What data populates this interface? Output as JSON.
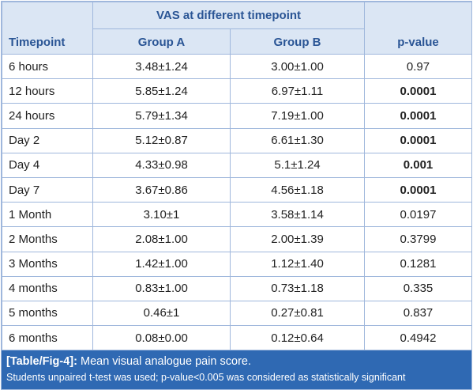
{
  "table": {
    "group_header": "VAS at different timepoint",
    "columns": [
      "Timepoint",
      "Group A",
      "Group B",
      "p-value"
    ],
    "rows": [
      {
        "timepoint": "6 hours",
        "group_a": "3.48±1.24",
        "group_b": "3.00±1.00",
        "p_value": "0.97",
        "bold": false
      },
      {
        "timepoint": "12 hours",
        "group_a": "5.85±1.24",
        "group_b": "6.97±1.11",
        "p_value": "0.0001",
        "bold": true
      },
      {
        "timepoint": "24 hours",
        "group_a": "5.79±1.34",
        "group_b": "7.19±1.00",
        "p_value": "0.0001",
        "bold": true
      },
      {
        "timepoint": "Day 2",
        "group_a": "5.12±0.87",
        "group_b": "6.61±1.30",
        "p_value": "0.0001",
        "bold": true
      },
      {
        "timepoint": "Day 4",
        "group_a": "4.33±0.98",
        "group_b": "5.1±1.24",
        "p_value": "0.001",
        "bold": true
      },
      {
        "timepoint": "Day 7",
        "group_a": "3.67±0.86",
        "group_b": "4.56±1.18",
        "p_value": "0.0001",
        "bold": true
      },
      {
        "timepoint": "1 Month",
        "group_a": "3.10±1",
        "group_b": "3.58±1.14",
        "p_value": "0.0197",
        "bold": false
      },
      {
        "timepoint": "2 Months",
        "group_a": "2.08±1.00",
        "group_b": "2.00±1.39",
        "p_value": "0.3799",
        "bold": false
      },
      {
        "timepoint": "3 Months",
        "group_a": "1.42±1.00",
        "group_b": "1.12±1.40",
        "p_value": "0.1281",
        "bold": false
      },
      {
        "timepoint": "4 months",
        "group_a": "0.83±1.00",
        "group_b": "0.73±1.18",
        "p_value": "0.335",
        "bold": false
      },
      {
        "timepoint": "5 months",
        "group_a": "0.46±1",
        "group_b": "0.27±0.81",
        "p_value": "0.837",
        "bold": false
      },
      {
        "timepoint": "6 months",
        "group_a": "0.08±0.00",
        "group_b": "0.12±0.64",
        "p_value": "0.4942",
        "bold": false
      }
    ]
  },
  "caption": {
    "label": "[Table/Fig-4]:",
    "title": "Mean visual analogue pain score.",
    "note": "Students unpaired t-test was used; p-value<0.005 was considered as statistically significant"
  },
  "colors": {
    "header_bg": "#dbe6f4",
    "header_text": "#2a5595",
    "border": "#9fb7dc",
    "caption_bg": "#2f69b3",
    "caption_text": "#ffffff"
  }
}
